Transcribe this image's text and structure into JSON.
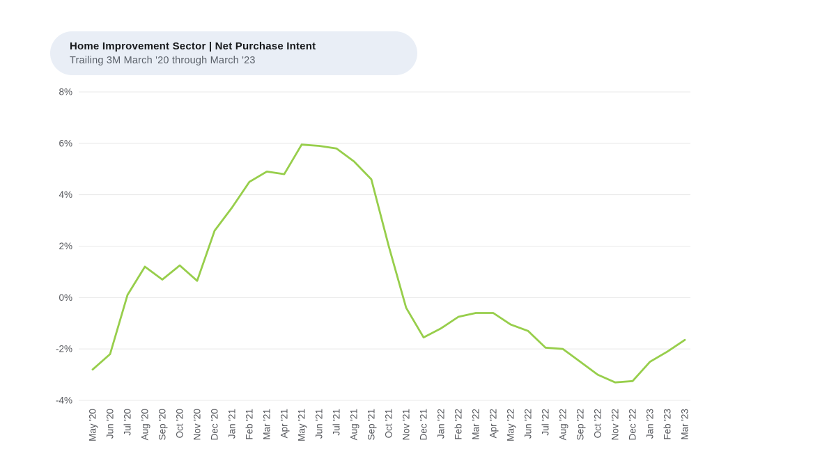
{
  "header": {
    "title": "Home Improvement Sector | Net Purchase Intent",
    "subtitle": "Trailing 3M March '20 through March '23"
  },
  "colors": {
    "line": "#97CE4B",
    "grid": "#E8E8E8",
    "tick_text": "#54565B",
    "header_bg": "#E9EEF6",
    "title_text": "#17191C",
    "subtitle_text": "#5A6069",
    "background": "#FFFFFF"
  },
  "chart_data": {
    "type": "line",
    "title": "Home Improvement Sector | Net Purchase Intent",
    "subtitle": "Trailing 3M March '20 through March '23",
    "xlabel": "",
    "ylabel": "",
    "ylim": [
      -4,
      8
    ],
    "yticks": [
      8,
      6,
      4,
      2,
      0,
      -2,
      -4
    ],
    "ytick_labels": [
      "8%",
      "6%",
      "4%",
      "2%",
      "0%",
      "-2%",
      "-4%"
    ],
    "grid": true,
    "legend": false,
    "categories": [
      "May '20",
      "Jun '20",
      "Jul '20",
      "Aug '20",
      "Sep '20",
      "Oct '20",
      "Nov '20",
      "Dec '20",
      "Jan '21",
      "Feb '21",
      "Mar '21",
      "Apr '21",
      "May '21",
      "Jun '21",
      "Jul '21",
      "Aug '21",
      "Sep '21",
      "Oct '21",
      "Nov '21",
      "Dec '21",
      "Jan '22",
      "Feb '22",
      "Mar '22",
      "Apr '22",
      "May '22",
      "Jun '22",
      "Jul '22",
      "Aug '22",
      "Sep '22",
      "Oct '22",
      "Nov '22",
      "Dec '22",
      "Jan '23",
      "Feb '23",
      "Mar '23"
    ],
    "values": [
      -2.8,
      -2.2,
      0.1,
      1.2,
      0.7,
      1.25,
      0.65,
      2.6,
      3.5,
      4.5,
      4.9,
      4.8,
      5.95,
      5.9,
      5.8,
      5.3,
      4.6,
      2.0,
      -0.4,
      -1.55,
      -1.2,
      -0.75,
      -0.6,
      -0.6,
      -1.05,
      -1.3,
      -1.95,
      -2.0,
      -2.5,
      -3.0,
      -3.3,
      -3.25,
      -2.5,
      -2.1,
      -1.65
    ]
  }
}
